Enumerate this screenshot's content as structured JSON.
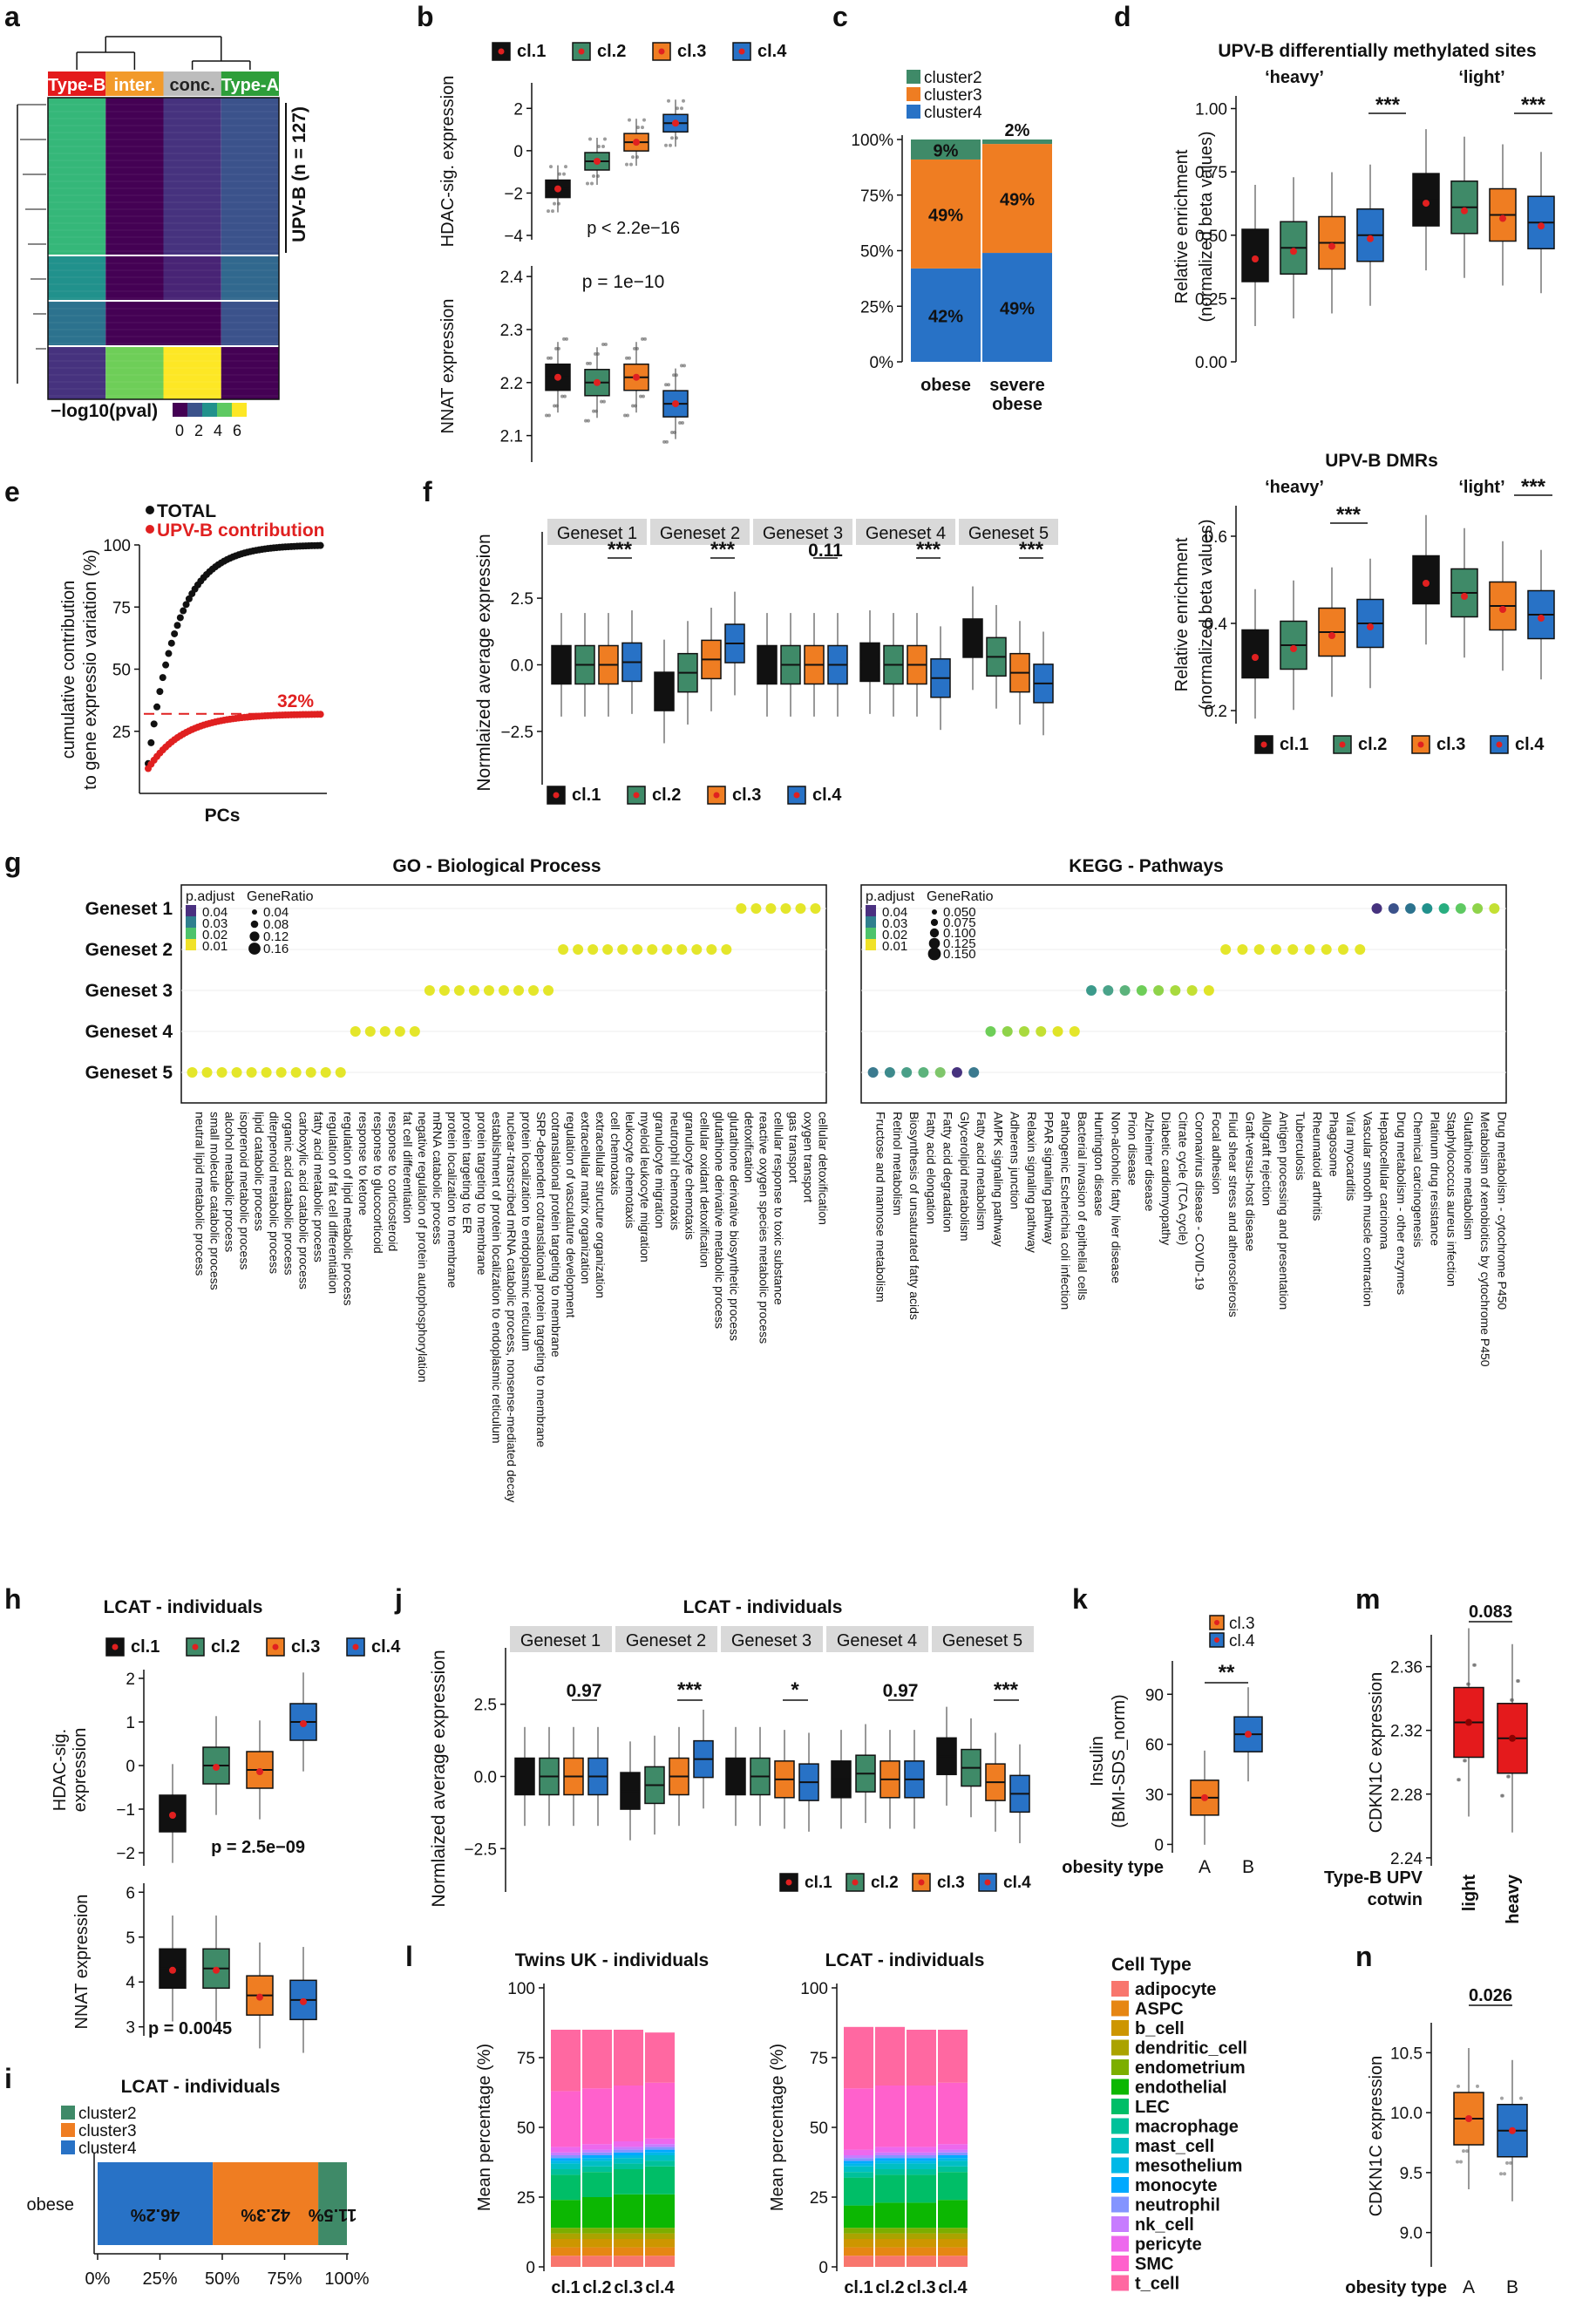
{
  "colors": {
    "c1": "#111111",
    "c2": "#3f8a68",
    "c3": "#ef7d22",
    "c4": "#2872c6",
    "red": "#e02020",
    "typeB": "#e41a1c",
    "inter": "#f29a2a",
    "conc": "#bdbdbd",
    "typeA": "#2e9e3a",
    "strip": "#d9d9d9"
  },
  "panels": {
    "a": {
      "letter": "a",
      "col_headers": [
        "Type-B",
        "inter.",
        "conc.",
        "Type-A"
      ],
      "row_label": "UPV-B (n = 127)",
      "legend_title": "−log10(pval)",
      "legend_ticks": [
        "0",
        "2",
        "4",
        "6"
      ]
    },
    "b": {
      "letter": "b",
      "legend": [
        "cl.1",
        "cl.2",
        "cl.3",
        "cl.4"
      ],
      "top": {
        "ylabel": "HDAC-sig. expression",
        "yticks": [
          "2",
          "0",
          "−2",
          "−4"
        ],
        "medians": [
          -1.8,
          -0.5,
          0.4,
          1.3
        ],
        "annotation": "p < 2.2e−16"
      },
      "bottom": {
        "ylabel": "NNAT expression",
        "yticks": [
          "2.4",
          "2.3",
          "2.2",
          "2.1"
        ],
        "medians": [
          2.21,
          2.2,
          2.21,
          2.16
        ],
        "annotation": "p = 1e−10"
      }
    },
    "c": {
      "letter": "c",
      "legend": [
        "cluster2",
        "cluster3",
        "cluster4"
      ],
      "categories": [
        "obese",
        "severe obese"
      ],
      "yticks": [
        "100%",
        "75%",
        "50%",
        "25%",
        "0%"
      ],
      "series": [
        {
          "name": "cluster4",
          "values": [
            42,
            49
          ],
          "labels": [
            "42%",
            "49%"
          ]
        },
        {
          "name": "cluster3",
          "values": [
            49,
            49
          ],
          "labels": [
            "49%",
            "49%"
          ]
        },
        {
          "name": "cluster2",
          "values": [
            9,
            2
          ],
          "labels": [
            "9%",
            "2%"
          ]
        }
      ]
    },
    "d": {
      "letter": "d",
      "title_top": "UPV-B differentially methylated sites",
      "title_bottom": "UPV-B DMRs",
      "sub": [
        "‘heavy’",
        "‘light’"
      ],
      "ylabel": "Relative enrichment (normalized beta values)",
      "stars": "***",
      "top_yticks": [
        "1.00",
        "0.75",
        "0.50",
        "0.25",
        "0.00"
      ],
      "bottom_yticks": [
        "0.6",
        "0.4",
        "0.2"
      ],
      "top_medians": [
        0.42,
        0.45,
        0.47,
        0.5,
        0.64,
        0.61,
        0.58,
        0.55
      ],
      "bottom_medians": [
        0.33,
        0.35,
        0.38,
        0.4,
        0.5,
        0.47,
        0.44,
        0.42
      ],
      "legend": [
        "cl.1",
        "cl.2",
        "cl.3",
        "cl.4"
      ]
    },
    "e": {
      "letter": "e",
      "legend_total": "TOTAL",
      "legend_upv": "UPV-B contribution",
      "ylabel": "cumulative contribution to gene expressio variation (%)",
      "xlabel": "PCs",
      "yticks": [
        "100",
        "75",
        "50",
        "25"
      ],
      "ref_label": "32%"
    },
    "f": {
      "letter": "f",
      "genesets": [
        "Geneset 1",
        "Geneset 2",
        "Geneset 3",
        "Geneset 4",
        "Geneset 5"
      ],
      "sig": [
        "***",
        "***",
        "0.11",
        "***",
        "***"
      ],
      "ylabel": "Normlaized average expression",
      "yticks": [
        "2.5",
        "0.0",
        "−2.5"
      ],
      "medians": [
        [
          0,
          0,
          0,
          0.1
        ],
        [
          -1,
          -0.3,
          0.2,
          0.8
        ],
        [
          0,
          0,
          0,
          0
        ],
        [
          0.1,
          0,
          0,
          -0.5
        ],
        [
          1,
          0.3,
          -0.3,
          -0.7
        ]
      ],
      "legend": [
        "cl.1",
        "cl.2",
        "cl.3",
        "cl.4"
      ]
    },
    "g": {
      "letter": "g",
      "go_title": "GO - Biological Process",
      "kegg_title": "KEGG - Pathways",
      "rows": [
        "Geneset 1",
        "Geneset 2",
        "Geneset 3",
        "Geneset 4",
        "Geneset 5"
      ],
      "go_padj_ticks": [
        "0.04",
        "0.03",
        "0.02",
        "0.01"
      ],
      "go_ratio_ticks": [
        "0.04",
        "0.08",
        "0.12",
        "0.16"
      ],
      "kegg_padj_ticks": [
        "0.04",
        "0.03",
        "0.02",
        "0.01"
      ],
      "kegg_ratio_ticks": [
        "0.050",
        "0.075",
        "0.100",
        "0.125",
        "0.150"
      ],
      "legend_padj": "p.adjust",
      "legend_ratio": "GeneRatio",
      "go_terms": [
        "neutral lipid metabolic process",
        "small molecule catabolic process",
        "alcohol metabolic process",
        "isoprenoid metabolic process",
        "lipid catabolic process",
        "diterpenoid metabolic process",
        "organic acid catabolic process",
        "carboxylic acid catabolic process",
        "fatty acid metabolic process",
        "regulation of fat cell differentiation",
        "regulation of lipid metabolic process",
        "response to ketone",
        "response to glucocorticoid",
        "response to corticosteroid",
        "fat cell differentiation",
        "negative regulation of protein autophosphorylation",
        "mRNA catabolic process",
        "protein localization to membrane",
        "protein targeting to ER",
        "protein targeting to membrane",
        "establishment of protein localization to endoplasmic reticulum",
        "nuclear-transcribed mRNA catabolic process, nonsense-mediated decay",
        "protein localization to endoplasmic reticulum",
        "SRP-dependent cotranslational protein targeting to membrane",
        "cotranslational protein targeting to membrane",
        "regulation of vasculature development",
        "extracellular matrix organization",
        "extracellular structure organization",
        "cell chemotaxis",
        "leukocyte chemotaxis",
        "myeloid leukocyte migration",
        "granulocyte migration",
        "neutrophil chemotaxis",
        "granulocyte chemotaxis",
        "cellular oxidant detoxification",
        "glutathione derivative metabolic process",
        "glutathione derivative biosynthetic process",
        "detoxification",
        "reactive oxygen species metabolic process",
        "cellular response to toxic substance",
        "gas transport",
        "oxygen transport",
        "cellular detoxification"
      ],
      "kegg_terms": [
        "Fructose and mannose metabolism",
        "Retinol metabolism",
        "Biosynthesis of unsaturated fatty acids",
        "Fatty acid elongation",
        "Fatty acid degradation",
        "Glycerolipid metabolism",
        "Fatty acid metabolism",
        "AMPK signaling pathway",
        "Adherens junction",
        "Relaxin signaling pathway",
        "PPAR signaling pathway",
        "Pathogenic Escherichia coli infection",
        "Bacterial invasion of epithelial cells",
        "Huntington disease",
        "Non-alcoholic fatty liver disease",
        "Prion disease",
        "Alzheimer disease",
        "Diabetic cardiomyopathy",
        "Citrate cycle (TCA cycle)",
        "Coronavirus disease - COVID-19",
        "Focal adhesion",
        "Fluid shear stress and atherosclerosis",
        "Graft-versus-host disease",
        "Allograft rejection",
        "Antigen processing and presentation",
        "Tuberculosis",
        "Rheumatoid arthritis",
        "Phagosome",
        "Viral myocarditis",
        "Vascular smooth muscle contraction",
        "Hepatocellular carcinoma",
        "Drug metabolism - other enzymes",
        "Chemical carcinogenesis",
        "Platinum drug resistance",
        "Staphylococcus aureus infection",
        "Glutathione metabolism",
        "Metabolism of xenobiotics by cytochrome P450",
        "Drug metabolism - cytochrome P450"
      ]
    },
    "h": {
      "letter": "h",
      "title": "LCAT - individuals",
      "legend": [
        "cl.1",
        "cl.2",
        "cl.3",
        "cl.4"
      ],
      "top": {
        "ylabel": "HDAC-sig. expression",
        "yticks": [
          "2",
          "1",
          "0",
          "−1",
          "−2"
        ],
        "medians": [
          -1.1,
          0,
          -0.1,
          1
        ],
        "annotation": "p = 2.5e−09"
      },
      "bottom": {
        "ylabel": "NNAT expression",
        "yticks": [
          "6",
          "5",
          "4",
          "3"
        ],
        "medians": [
          4.3,
          4.3,
          3.7,
          3.6
        ],
        "annotation": "p = 0.0045"
      }
    },
    "i": {
      "letter": "i",
      "title": "LCAT - individuals",
      "legend": [
        "cluster2",
        "cluster3",
        "cluster4"
      ],
      "category": "obese",
      "xticks": [
        "0%",
        "25%",
        "50%",
        "75%",
        "100%"
      ],
      "series": [
        {
          "name": "cluster4",
          "value": 46.2,
          "label": "46.2%"
        },
        {
          "name": "cluster3",
          "value": 42.3,
          "label": "42.3%"
        },
        {
          "name": "cluster2",
          "value": 11.5,
          "label": "11.5%"
        }
      ]
    },
    "j": {
      "letter": "j",
      "title": "LCAT - individuals",
      "genesets": [
        "Geneset 1",
        "Geneset 2",
        "Geneset 3",
        "Geneset 4",
        "Geneset 5"
      ],
      "sig": [
        "0.97",
        "***",
        "*",
        "0.97",
        "***"
      ],
      "ylabel": "Normlaized average expression",
      "yticks": [
        "2.5",
        "0.0",
        "−2.5"
      ],
      "medians": [
        [
          0,
          0,
          0,
          0
        ],
        [
          -0.5,
          -0.3,
          0,
          0.6
        ],
        [
          0,
          0,
          -0.1,
          -0.2
        ],
        [
          -0.1,
          0.1,
          -0.1,
          -0.1
        ],
        [
          0.7,
          0.3,
          -0.2,
          -0.6
        ]
      ],
      "legend": [
        "cl.1",
        "cl.2",
        "cl.3",
        "cl.4"
      ]
    },
    "k": {
      "letter": "k",
      "legend": [
        "cl.3",
        "cl.4"
      ],
      "ylabel": "Insulin (BMI-SDS_norm)",
      "yticks": [
        "90",
        "60",
        "30",
        "0"
      ],
      "xlabel": "obesity type",
      "categories": [
        "A",
        "B"
      ],
      "medians": [
        28,
        66
      ],
      "sig": "**"
    },
    "l": {
      "letter": "l",
      "titles": [
        "Twins UK - individuals",
        "LCAT - individuals"
      ],
      "ylabel": "Mean percentage (%)",
      "yticks": [
        "100",
        "75",
        "50",
        "25",
        "0"
      ],
      "categories": [
        "cl.1",
        "cl.2",
        "cl.3",
        "cl.4"
      ],
      "legend_title": "Cell Type",
      "cell_types": [
        "adipocyte",
        "ASPC",
        "b_cell",
        "dendritic_cell",
        "endometrium",
        "endothelial",
        "LEC",
        "macrophage",
        "mast_cell",
        "mesothelium",
        "monocyte",
        "neutrophil",
        "nk_cell",
        "pericyte",
        "SMC",
        "t_cell"
      ],
      "cell_colors": [
        "#f8766d",
        "#e68613",
        "#cd9600",
        "#aba300",
        "#7cae00",
        "#0cb702",
        "#00be67",
        "#00c19a",
        "#00bfc4",
        "#00b8e7",
        "#00a9ff",
        "#8494ff",
        "#c77cff",
        "#ed68ed",
        "#ff61cc",
        "#ff68a1"
      ],
      "stack_twins": [
        [
          4,
          3,
          3,
          2,
          2,
          10,
          9,
          2,
          2,
          1,
          1,
          1,
          1,
          2,
          20,
          22
        ],
        [
          4,
          3,
          3,
          2,
          2,
          11,
          9,
          2,
          2,
          1,
          1,
          1,
          1,
          2,
          20,
          21
        ],
        [
          4,
          3,
          3,
          2,
          2,
          12,
          9,
          2,
          2,
          1,
          1,
          1,
          1,
          2,
          20,
          20
        ],
        [
          4,
          3,
          3,
          2,
          2,
          12,
          10,
          2,
          2,
          1,
          1,
          1,
          1,
          2,
          20,
          18
        ]
      ],
      "stack_lcat": [
        [
          4,
          3,
          3,
          2,
          2,
          8,
          10,
          2,
          2,
          1,
          1,
          1,
          1,
          2,
          22,
          22
        ],
        [
          4,
          3,
          3,
          2,
          2,
          9,
          10,
          2,
          2,
          1,
          1,
          1,
          1,
          2,
          22,
          21
        ],
        [
          4,
          3,
          3,
          2,
          2,
          9,
          10,
          2,
          2,
          1,
          1,
          1,
          1,
          2,
          22,
          20
        ],
        [
          4,
          3,
          3,
          2,
          2,
          10,
          10,
          2,
          2,
          1,
          1,
          1,
          1,
          2,
          22,
          19
        ]
      ]
    },
    "m": {
      "letter": "m",
      "ylabel": "CDKN1C expression",
      "yticks": [
        "2.36",
        "2.32",
        "2.28",
        "2.24"
      ],
      "xlabel1": "Type-B UPV",
      "xlabel2": "cotwin",
      "categories": [
        "light",
        "heavy"
      ],
      "medians": [
        2.325,
        2.315
      ],
      "sig": "0.083"
    },
    "n": {
      "letter": "n",
      "ylabel": "CDKN1C expression",
      "yticks": [
        "10.5",
        "10.0",
        "9.5",
        "9.0"
      ],
      "xlabel": "obesity type",
      "categories": [
        "A",
        "B"
      ],
      "medians": [
        9.95,
        9.85
      ],
      "sig": "0.026"
    }
  }
}
